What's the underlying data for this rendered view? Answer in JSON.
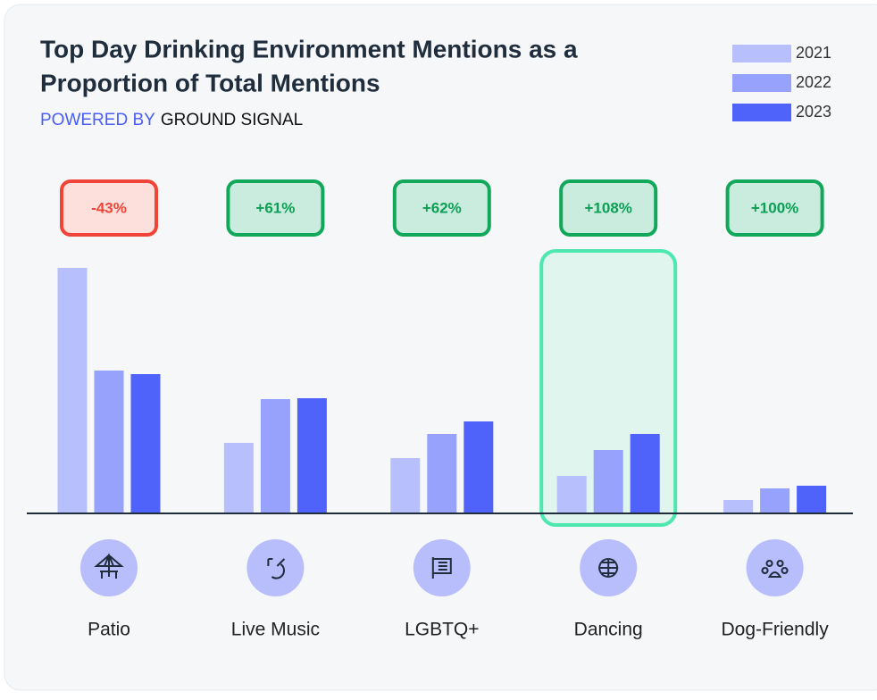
{
  "chart_data": {
    "type": "bar",
    "title": [
      "Top Day Drinking  Environment Mentions as a",
      "Proportion of Total Mentions"
    ],
    "subtitle": [
      "POWERED BY",
      "GROUND SIGNAL"
    ],
    "categories": [
      "Patio",
      "Live Music",
      "LGBTQ+",
      "Dancing",
      "Dog-Friendly"
    ],
    "series": [
      {
        "name": "2021",
        "color": "#b8bffd",
        "values": [
          275,
          79,
          62,
          42,
          15
        ]
      },
      {
        "name": "2022",
        "color": "#97a2fc",
        "values": [
          160,
          128,
          89,
          71,
          28
        ]
      },
      {
        "name": "2023",
        "color": "#4f63fb",
        "values": [
          156,
          129,
          103,
          89,
          31
        ]
      }
    ],
    "ylim": [
      0,
      290
    ],
    "annotations": [
      "-43%",
      "+61%",
      "+62%",
      "+108%",
      "+100%"
    ],
    "highlight_index": 3,
    "legend": "top-right"
  }
}
